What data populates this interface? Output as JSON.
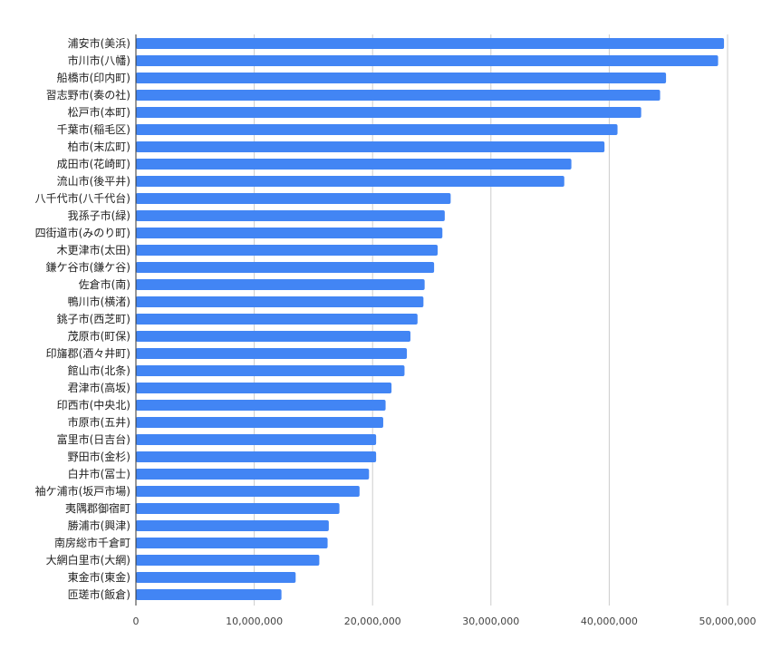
{
  "chart_data": {
    "type": "bar",
    "orientation": "horizontal",
    "title": "",
    "xlabel": "",
    "ylabel": "",
    "xlim": [
      0,
      50000000
    ],
    "x_ticks": [
      0,
      10000000,
      20000000,
      30000000,
      40000000,
      50000000
    ],
    "x_tick_labels": [
      "0",
      "10,000,000",
      "20,000,000",
      "30,000,000",
      "40,000,000",
      "50,000,000"
    ],
    "grid": true,
    "legend": "none",
    "bar_color": "#4285f4",
    "categories": [
      "浦安市(美浜)",
      "市川市(八幡)",
      "船橋市(印内町)",
      "習志野市(奏の社)",
      "松戸市(本町)",
      "千葉市(稲毛区)",
      "柏市(末広町)",
      "成田市(花崎町)",
      "流山市(後平井)",
      "八千代市(八千代台)",
      "我孫子市(緑)",
      "四街道市(みのり町)",
      "木更津市(太田)",
      "鎌ケ谷市(鎌ケ谷)",
      "佐倉市(南)",
      "鴨川市(横渚)",
      "銚子市(西芝町)",
      "茂原市(町保)",
      "印旛郡(酒々井町)",
      "館山市(北条)",
      "君津市(高坂)",
      "印西市(中央北)",
      "市原市(五井)",
      "富里市(日吉台)",
      "野田市(金杉)",
      "白井市(冨士)",
      "袖ケ浦市(坂戸市場)",
      "夷隅郡御宿町",
      "勝浦市(興津)",
      "南房総市千倉町",
      "大網白里市(大網)",
      "東金市(東金)",
      "匝瑳市(飯倉)"
    ],
    "values": [
      49700000,
      49200000,
      44800000,
      44300000,
      42700000,
      40700000,
      39600000,
      36800000,
      36200000,
      26600000,
      26100000,
      25900000,
      25500000,
      25200000,
      24400000,
      24300000,
      23800000,
      23200000,
      22900000,
      22700000,
      21600000,
      21100000,
      20900000,
      20300000,
      20300000,
      19700000,
      18900000,
      17200000,
      16300000,
      16200000,
      15500000,
      13500000,
      12300000
    ]
  }
}
